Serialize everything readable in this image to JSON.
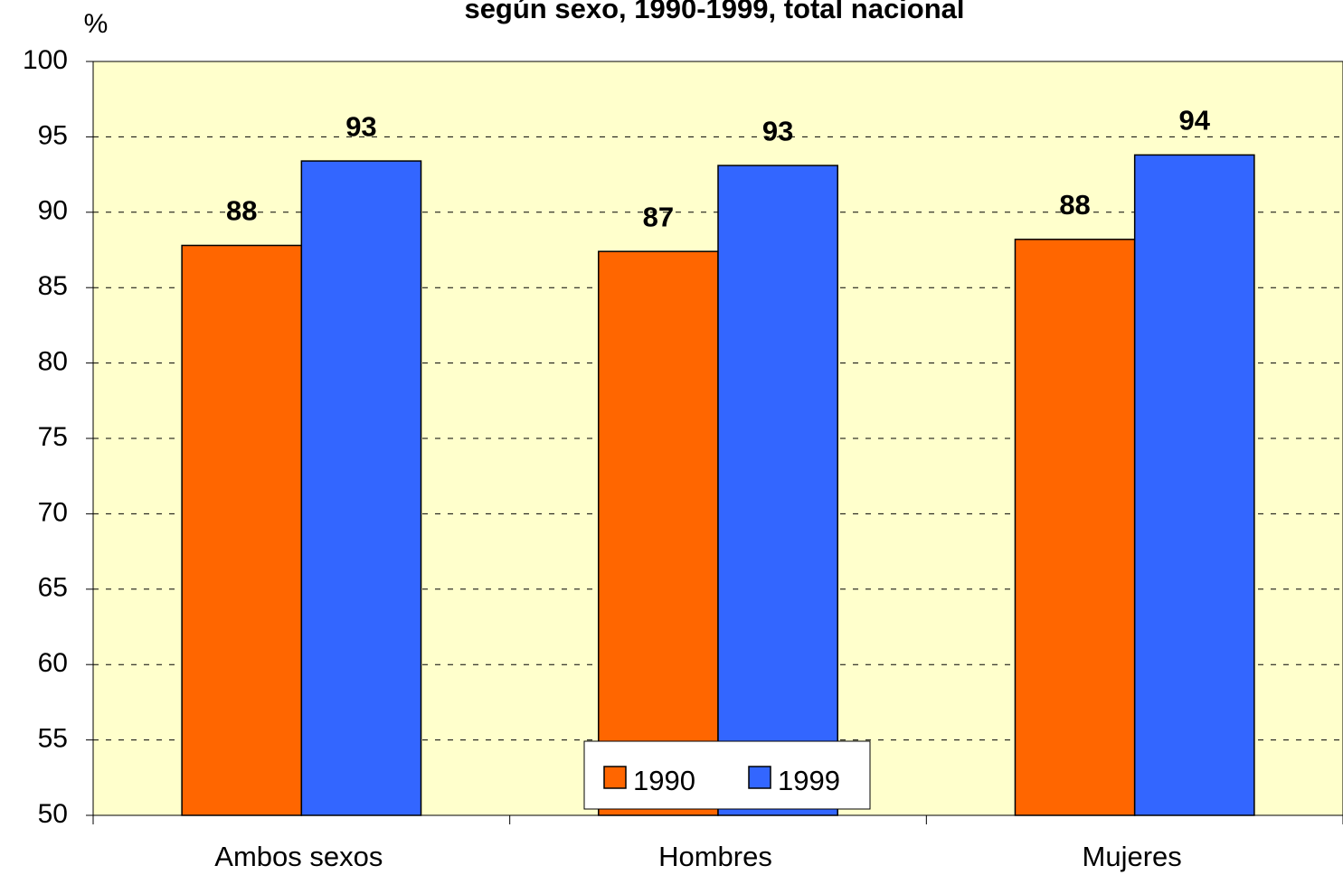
{
  "chart_data": {
    "type": "bar",
    "title": "según sexo, 1990-1999, total nacional",
    "y_label": "%",
    "categories": [
      "Ambos sexos",
      "Hombres",
      "Mujeres"
    ],
    "series": [
      {
        "name": "1990",
        "color": "#ff6600",
        "values": [
          87.8,
          87.4,
          88.2
        ],
        "value_labels": [
          "88",
          "87",
          "88"
        ]
      },
      {
        "name": "1999",
        "color": "#3366ff",
        "values": [
          93.4,
          93.1,
          93.8
        ],
        "value_labels": [
          "93",
          "93",
          "94"
        ]
      }
    ],
    "ylim": [
      50,
      100
    ],
    "yticks": [
      50,
      55,
      60,
      65,
      70,
      75,
      80,
      85,
      90,
      95,
      100
    ],
    "grid": true,
    "legend": "bottom",
    "background": "#ffffcc"
  }
}
